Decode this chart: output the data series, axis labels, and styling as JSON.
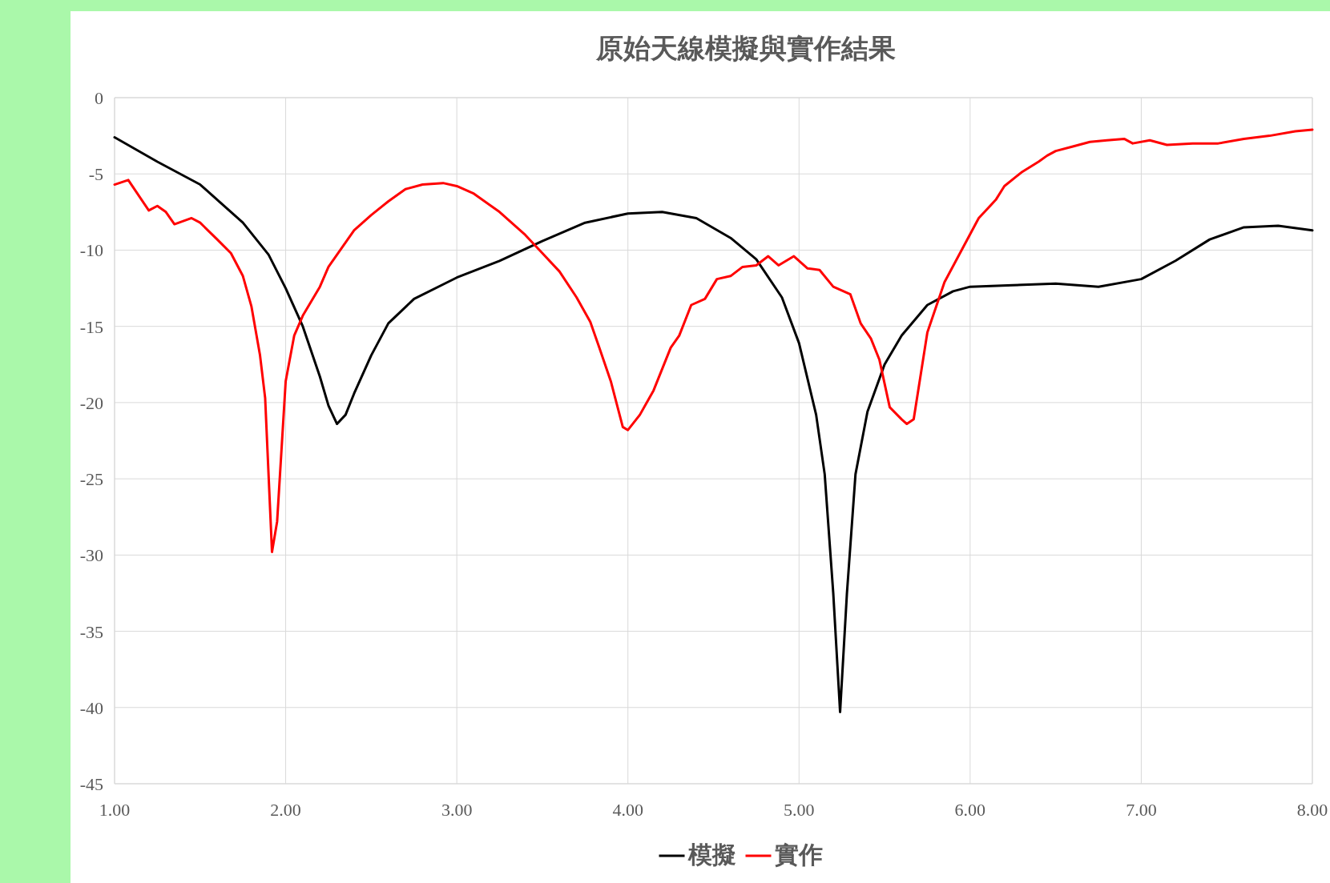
{
  "chart_data": {
    "type": "line",
    "title": "原始天線模擬與實作結果",
    "xlim": [
      1,
      8
    ],
    "ylim": [
      -45,
      0
    ],
    "xticks": [
      {
        "value": 1,
        "label": "1.00"
      },
      {
        "value": 2,
        "label": "2.00"
      },
      {
        "value": 3,
        "label": "3.00"
      },
      {
        "value": 4,
        "label": "4.00"
      },
      {
        "value": 5,
        "label": "5.00"
      },
      {
        "value": 6,
        "label": "6.00"
      },
      {
        "value": 7,
        "label": "7.00"
      },
      {
        "value": 8,
        "label": "8.00"
      }
    ],
    "yticks": [
      0,
      -5,
      -10,
      -15,
      -20,
      -25,
      -30,
      -35,
      -40,
      -45
    ],
    "grid": true,
    "legend": "bottom",
    "marker": "none",
    "line_style": "solid",
    "series": [
      {
        "name": "模擬",
        "color": "#000000",
        "x": [
          1,
          1.25,
          1.5,
          1.75,
          1.9,
          2,
          2.1,
          2.2,
          2.25,
          2.3,
          2.35,
          2.4,
          2.5,
          2.6,
          2.75,
          3,
          3.25,
          3.5,
          3.75,
          4,
          4.2,
          4.4,
          4.6,
          4.75,
          4.9,
          5,
          5.1,
          5.15,
          5.2,
          5.24,
          5.28,
          5.33,
          5.4,
          5.5,
          5.6,
          5.75,
          5.9,
          6,
          6.25,
          6.5,
          6.75,
          7,
          7.2,
          7.4,
          7.6,
          7.8,
          8
        ],
        "values": [
          -2.6,
          -4.2,
          -5.7,
          -8.2,
          -10.3,
          -12.5,
          -15,
          -18.3,
          -20.2,
          -21.4,
          -20.8,
          -19.4,
          -16.9,
          -14.8,
          -13.2,
          -11.8,
          -10.7,
          -9.4,
          -8.2,
          -7.6,
          -7.5,
          -7.9,
          -9.2,
          -10.6,
          -13.1,
          -16.1,
          -20.8,
          -24.7,
          -32.5,
          -40.3,
          -32.5,
          -24.7,
          -20.6,
          -17.5,
          -15.6,
          -13.6,
          -12.7,
          -12.4,
          -12.3,
          -12.2,
          -12.4,
          -11.9,
          -10.7,
          -9.3,
          -8.5,
          -8.4,
          -8.7
        ]
      },
      {
        "name": "實作",
        "color": "#ff0000",
        "x": [
          1,
          1.08,
          1.2,
          1.25,
          1.3,
          1.35,
          1.45,
          1.5,
          1.6,
          1.68,
          1.75,
          1.8,
          1.85,
          1.88,
          1.92,
          1.95,
          2,
          2.05,
          2.1,
          2.2,
          2.25,
          2.4,
          2.5,
          2.6,
          2.7,
          2.8,
          2.92,
          3,
          3.1,
          3.25,
          3.4,
          3.5,
          3.6,
          3.7,
          3.78,
          3.83,
          3.9,
          3.97,
          4,
          4.07,
          4.15,
          4.25,
          4.3,
          4.37,
          4.45,
          4.52,
          4.6,
          4.67,
          4.75,
          4.82,
          4.88,
          4.97,
          5.05,
          5.12,
          5.2,
          5.3,
          5.36,
          5.42,
          5.47,
          5.53,
          5.6,
          5.63,
          5.67,
          5.75,
          5.85,
          5.95,
          6.05,
          6.15,
          6.2,
          6.3,
          6.4,
          6.45,
          6.5,
          6.6,
          6.7,
          6.8,
          6.9,
          6.95,
          7.05,
          7.15,
          7.3,
          7.45,
          7.6,
          7.75,
          7.9,
          8
        ],
        "values": [
          -5.7,
          -5.4,
          -7.4,
          -7.1,
          -7.5,
          -8.3,
          -7.9,
          -8.2,
          -9.3,
          -10.2,
          -11.7,
          -13.7,
          -16.9,
          -19.7,
          -29.8,
          -27.8,
          -18.6,
          -15.6,
          -14.3,
          -12.4,
          -11.1,
          -8.7,
          -7.7,
          -6.8,
          -6,
          -5.7,
          -5.6,
          -5.8,
          -6.3,
          -7.5,
          -9,
          -10.2,
          -11.4,
          -13.1,
          -14.7,
          -16.3,
          -18.6,
          -21.6,
          -21.8,
          -20.8,
          -19.2,
          -16.4,
          -15.6,
          -13.6,
          -13.2,
          -11.9,
          -11.7,
          -11.1,
          -11,
          -10.4,
          -11,
          -10.4,
          -11.2,
          -11.3,
          -12.4,
          -12.9,
          -14.8,
          -15.8,
          -17.2,
          -20.3,
          -21.1,
          -21.4,
          -21.1,
          -15.4,
          -12.1,
          -10,
          -7.9,
          -6.7,
          -5.8,
          -4.9,
          -4.2,
          -3.8,
          -3.5,
          -3.2,
          -2.9,
          -2.8,
          -2.7,
          -3,
          -2.8,
          -3.1,
          -3,
          -3,
          -2.7,
          -2.5,
          -2.2,
          -2.1
        ]
      }
    ]
  }
}
